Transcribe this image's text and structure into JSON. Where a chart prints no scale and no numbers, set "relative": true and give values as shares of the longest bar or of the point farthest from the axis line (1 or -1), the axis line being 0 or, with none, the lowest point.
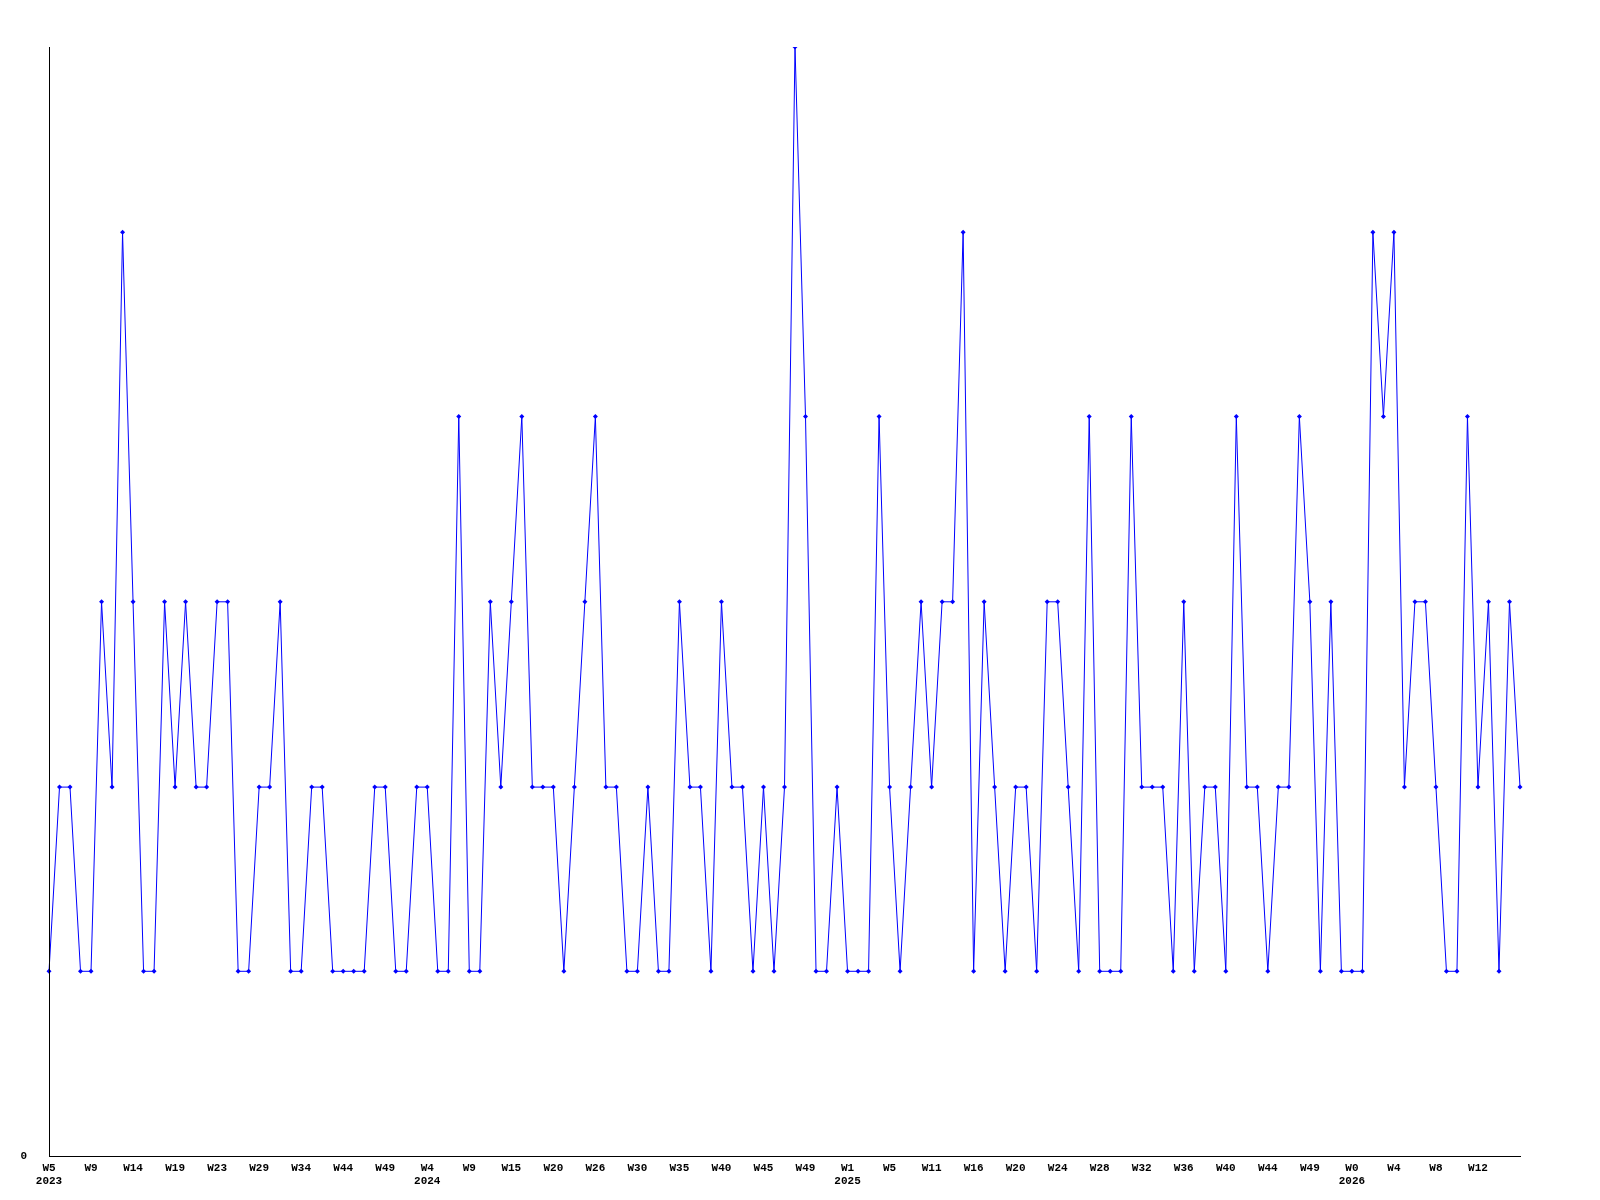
{
  "chart_data": {
    "type": "line",
    "relative": true,
    "color": "#0000ff",
    "marker": "diamond",
    "grid": false,
    "legend": false,
    "annotations": [
      "0"
    ],
    "categories": [
      "W5\n2023",
      null,
      null,
      null,
      "W9",
      null,
      null,
      null,
      "W14",
      null,
      null,
      null,
      "W19",
      null,
      null,
      null,
      "W23",
      null,
      null,
      null,
      "W29",
      null,
      null,
      null,
      "W34",
      null,
      null,
      null,
      "W44",
      null,
      null,
      null,
      "W49",
      null,
      null,
      null,
      "W4\n2024",
      null,
      null,
      null,
      "W9",
      null,
      null,
      null,
      "W15",
      null,
      null,
      null,
      "W20",
      null,
      null,
      null,
      "W26",
      null,
      null,
      null,
      "W30",
      null,
      null,
      null,
      "W35",
      null,
      null,
      null,
      "W40",
      null,
      null,
      null,
      "W45",
      null,
      null,
      null,
      "W49",
      null,
      null,
      null,
      "W1\n2025",
      null,
      null,
      null,
      "W5",
      null,
      null,
      null,
      "W11",
      null,
      null,
      null,
      "W16",
      null,
      null,
      null,
      "W20",
      null,
      null,
      null,
      "W24",
      null,
      null,
      null,
      "W28",
      null,
      null,
      null,
      "W32",
      null,
      null,
      null,
      "W36",
      null,
      null,
      null,
      "W40",
      null,
      null,
      null,
      "W44",
      null,
      null,
      null,
      "W49",
      null,
      null,
      null,
      "W0\n2026",
      null,
      null,
      null,
      "W4",
      null,
      null,
      null,
      "W8",
      null,
      null,
      null,
      "W12",
      null,
      null,
      null,
      null
    ],
    "values": [
      0.167,
      0.333,
      0.333,
      0.167,
      0.167,
      0.5,
      0.333,
      0.833,
      0.5,
      0.167,
      0.167,
      0.5,
      0.333,
      0.5,
      0.333,
      0.333,
      0.5,
      0.5,
      0.167,
      0.167,
      0.333,
      0.333,
      0.5,
      0.167,
      0.167,
      0.333,
      0.333,
      0.167,
      0.167,
      0.167,
      0.167,
      0.333,
      0.333,
      0.167,
      0.167,
      0.333,
      0.333,
      0.167,
      0.167,
      0.667,
      0.167,
      0.167,
      0.5,
      0.333,
      0.5,
      0.667,
      0.333,
      0.333,
      0.333,
      0.167,
      0.333,
      0.5,
      0.667,
      0.333,
      0.333,
      0.167,
      0.167,
      0.333,
      0.167,
      0.167,
      0.5,
      0.333,
      0.333,
      0.167,
      0.5,
      0.333,
      0.333,
      0.167,
      0.333,
      0.167,
      0.333,
      1,
      0.667,
      0.167,
      0.167,
      0.333,
      0.167,
      0.167,
      0.167,
      0.667,
      0.333,
      0.167,
      0.333,
      0.5,
      0.333,
      0.5,
      0.5,
      0.833,
      0.167,
      0.5,
      0.333,
      0.167,
      0.333,
      0.333,
      0.167,
      0.5,
      0.5,
      0.333,
      0.167,
      0.667,
      0.167,
      0.167,
      0.167,
      0.667,
      0.333,
      0.333,
      0.333,
      0.167,
      0.5,
      0.167,
      0.333,
      0.333,
      0.167,
      0.667,
      0.333,
      0.333,
      0.167,
      0.333,
      0.333,
      0.667,
      0.5,
      0.167,
      0.5,
      0.167,
      0.167,
      0.167,
      0.833,
      0.667,
      0.833,
      0.333,
      0.5,
      0.5,
      0.333,
      0.167,
      0.167,
      0.667,
      0.333,
      0.5,
      0.167,
      0.5,
      0.333
    ]
  }
}
